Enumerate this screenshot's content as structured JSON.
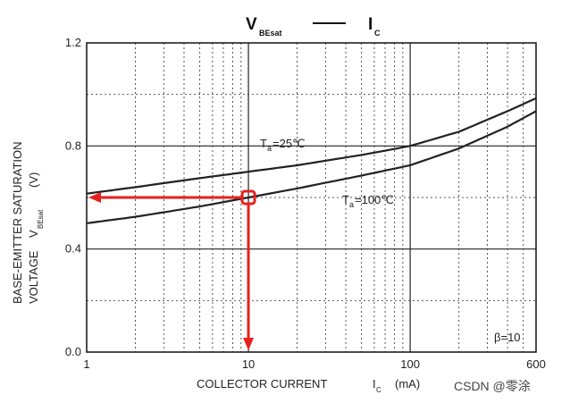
{
  "chart_data": {
    "type": "line",
    "title": {
      "main": "V",
      "main_sub": "BEsat",
      "second": "I",
      "second_sub": "C"
    },
    "xlabel": "COLLECTOR CURRENT",
    "xlabel_symbol": "I",
    "xlabel_symbol_sub": "C",
    "xlabel_unit": "(mA)",
    "ylabel_line1": "BASE-EMITTER SATURATION",
    "ylabel_line2": "VOLTAGE",
    "ylabel_symbol": "V",
    "ylabel_symbol_sub": "BEsat",
    "ylabel_unit": "(V)",
    "x_scale": "log",
    "xlim": [
      1,
      600
    ],
    "ylim": [
      0,
      1.2
    ],
    "x_ticks": [
      "1",
      "10",
      "100",
      "600"
    ],
    "y_ticks": [
      "0.0",
      "0.4",
      "0.8",
      "1.2"
    ],
    "grid": true,
    "annotation": "β=10",
    "series": [
      {
        "name": "Ta=25℃",
        "label_main": "T",
        "label_sub": "a",
        "label_rest": "=25℃",
        "x": [
          1,
          2,
          5,
          10,
          20,
          50,
          100,
          200,
          400,
          600
        ],
        "y": [
          0.615,
          0.64,
          0.675,
          0.7,
          0.725,
          0.765,
          0.8,
          0.855,
          0.935,
          0.985
        ]
      },
      {
        "name": "Ta=100℃",
        "label_main": "T",
        "label_sub": "a",
        "label_rest": "=100℃",
        "x": [
          1,
          2,
          5,
          10,
          20,
          50,
          100,
          200,
          400,
          600
        ],
        "y": [
          0.5,
          0.525,
          0.565,
          0.6,
          0.635,
          0.685,
          0.725,
          0.79,
          0.875,
          0.935
        ]
      }
    ],
    "highlight_point": {
      "x": 10,
      "y": 0.6
    },
    "colors": {
      "curve": "#222222",
      "grid_major": "#222222",
      "grid_minor": "#555555",
      "highlight": "#e8201c"
    }
  },
  "watermark": "CSDN @零涂"
}
